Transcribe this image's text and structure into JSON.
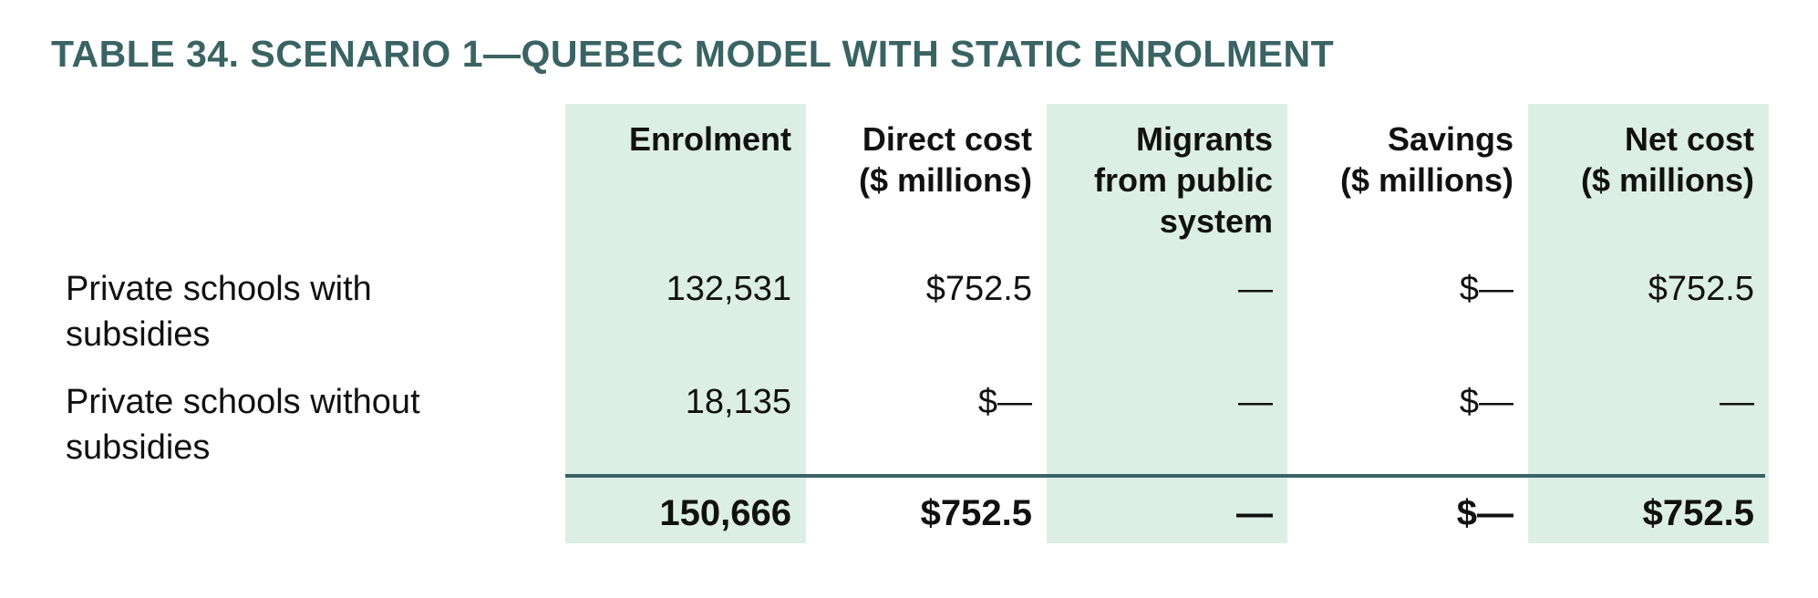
{
  "title": "TABLE 34. SCENARIO 1—QUEBEC MODEL WITH STATIC ENROLMENT",
  "columns": [
    {
      "label_lines": [
        "Enrolment"
      ]
    },
    {
      "label_lines": [
        "Direct cost",
        "($ millions)"
      ]
    },
    {
      "label_lines": [
        "Migrants",
        "from public",
        "system"
      ]
    },
    {
      "label_lines": [
        "Savings",
        "($ millions)"
      ]
    },
    {
      "label_lines": [
        "Net cost",
        "($ millions)"
      ]
    }
  ],
  "rows": [
    {
      "label_lines": [
        "Private schools with",
        "subsidies"
      ],
      "cells": [
        "132,531",
        "$752.5",
        "—",
        "$—",
        "$752.5"
      ]
    },
    {
      "label_lines": [
        "Private schools without",
        "subsidies"
      ],
      "cells": [
        "18,135",
        "$—",
        "—",
        "$—",
        "—"
      ]
    }
  ],
  "totals": [
    "150,666",
    "$752.5",
    "—",
    "$—",
    "$752.5"
  ],
  "colors": {
    "title": "#3a6363",
    "shade": "#dcefe6",
    "rule": "#3a6363"
  }
}
